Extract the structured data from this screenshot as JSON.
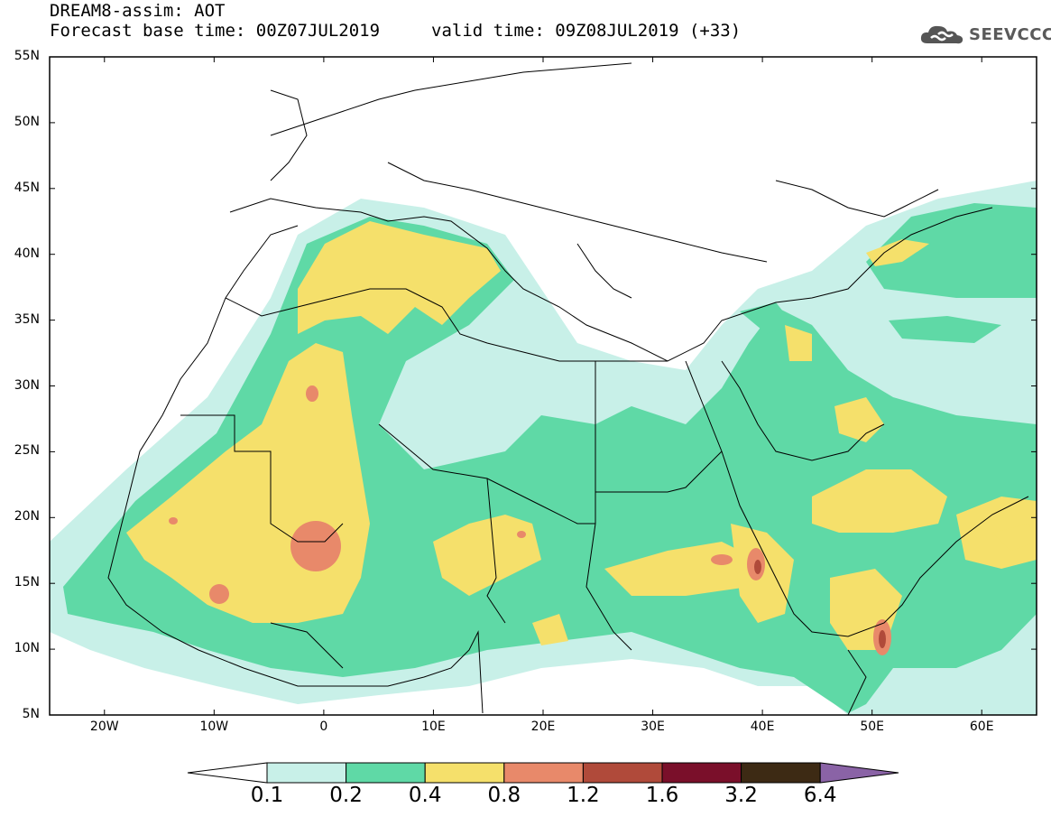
{
  "header": {
    "title": "DREAM8-assim: AOT",
    "base_time": "Forecast base time: 00Z07JUL2019",
    "valid_time": "valid time: 09Z08JUL2019 (+33)"
  },
  "logo": {
    "icon": "cloud-icon",
    "text": "SEEVCCC",
    "color": "#5a5a5a"
  },
  "map": {
    "projection": "lat-lon",
    "lon_range": [
      -25,
      65
    ],
    "lat_range": [
      5,
      55
    ],
    "lat_labels": [
      "55N",
      "50N",
      "45N",
      "40N",
      "35N",
      "30N",
      "25N",
      "20N",
      "15N",
      "10N",
      "5N"
    ],
    "lon_labels": [
      "20W",
      "10W",
      "0",
      "10E",
      "20E",
      "30E",
      "40E",
      "50E",
      "60E"
    ]
  },
  "colorbar": {
    "levels": [
      "0.1",
      "0.2",
      "0.4",
      "0.8",
      "1.2",
      "1.6",
      "3.2",
      "6.4"
    ],
    "colors": [
      "#c8f0e8",
      "#5fd9a6",
      "#f5e06b",
      "#e8896a",
      "#b04a3a",
      "#7a0f2a",
      "#3d2a14",
      "#8a63a6"
    ],
    "extends": "both"
  }
}
